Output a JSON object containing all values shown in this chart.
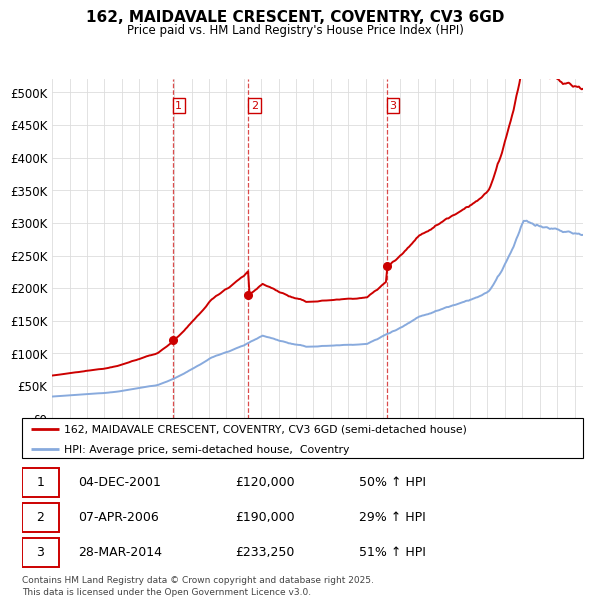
{
  "title": "162, MAIDAVALE CRESCENT, COVENTRY, CV3 6GD",
  "subtitle": "Price paid vs. HM Land Registry's House Price Index (HPI)",
  "legend_line1": "162, MAIDAVALE CRESCENT, COVENTRY, CV3 6GD (semi-detached house)",
  "legend_line2": "HPI: Average price, semi-detached house,  Coventry",
  "transactions": [
    {
      "num": 1,
      "date": "04-DEC-2001",
      "price": 120000,
      "hpi_diff": "50% ↑ HPI",
      "x": 2001.92
    },
    {
      "num": 2,
      "date": "07-APR-2006",
      "price": 190000,
      "hpi_diff": "29% ↑ HPI",
      "x": 2006.27
    },
    {
      "num": 3,
      "date": "28-MAR-2014",
      "price": 233250,
      "hpi_diff": "51% ↑ HPI",
      "x": 2014.23
    }
  ],
  "vline_color": "#cc0000",
  "hpi_color": "#88aadd",
  "price_color": "#cc0000",
  "ytick_values": [
    0,
    50000,
    100000,
    150000,
    200000,
    250000,
    300000,
    350000,
    400000,
    450000,
    500000
  ],
  "ylim": [
    0,
    520000
  ],
  "xlim_start": 1995.0,
  "xlim_end": 2025.5,
  "background_color": "#ffffff",
  "grid_color": "#dddddd",
  "footer": "Contains HM Land Registry data © Crown copyright and database right 2025.\nThis data is licensed under the Open Government Licence v3.0."
}
